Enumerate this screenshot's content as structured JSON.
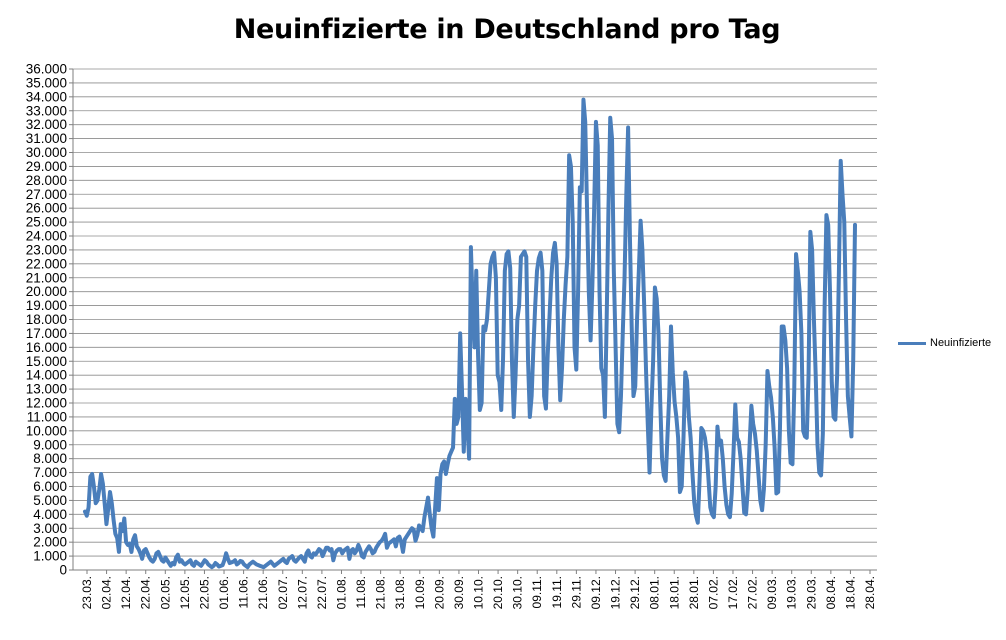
{
  "chart_data": {
    "type": "line",
    "title": "Neuinfizierte in Deutschland pro Tag",
    "xlabel": "",
    "ylabel": "",
    "ylim": [
      0,
      36000
    ],
    "y_ticks": [
      "0",
      "1.000",
      "2.000",
      "3.000",
      "4.000",
      "5.000",
      "6.000",
      "7.000",
      "8.000",
      "9.000",
      "10.000",
      "11.000",
      "12.000",
      "13.000",
      "14.000",
      "15.000",
      "16.000",
      "17.000",
      "18.000",
      "19.000",
      "20.000",
      "21.000",
      "22.000",
      "23.000",
      "24.000",
      "25.000",
      "26.000",
      "27.000",
      "28.000",
      "29.000",
      "30.000",
      "31.000",
      "32.000",
      "33.000",
      "34.000",
      "35.000",
      "36.000"
    ],
    "x_ticks": [
      "23.03.",
      "02.04.",
      "12.04.",
      "22.04.",
      "02.05.",
      "12.05.",
      "22.05.",
      "01.06.",
      "11.06.",
      "21.06.",
      "02.07.",
      "12.07.",
      "22.07.",
      "01.08.",
      "11.08.",
      "21.08.",
      "31.08.",
      "10.09.",
      "20.09.",
      "30.09.",
      "10.10.",
      "20.10.",
      "30.10.",
      "09.11.",
      "19.11.",
      "29.11.",
      "09.12.",
      "19.12.",
      "29.12.",
      "08.01.",
      "18.01.",
      "28.01.",
      "07.02.",
      "17.02.",
      "27.02.",
      "09.03.",
      "19.03.",
      "29.03.",
      "08.04.",
      "18.04.",
      "28.04."
    ],
    "grid": true,
    "legend_position": "right",
    "color": "#4a7ebb",
    "series": [
      {
        "name": "Neuinfizierte",
        "values": [
          4200,
          3900,
          4500,
          6700,
          6900,
          6000,
          4800,
          5000,
          5800,
          6900,
          6200,
          4800,
          3300,
          4400,
          5600,
          4800,
          3600,
          2600,
          2300,
          1300,
          3300,
          2800,
          3700,
          2000,
          1800,
          1900,
          1300,
          2200,
          2500,
          1700,
          1500,
          1200,
          800,
          1400,
          1500,
          1200,
          900,
          700,
          600,
          800,
          1200,
          1300,
          1000,
          700,
          600,
          900,
          700,
          500,
          300,
          500,
          400,
          900,
          1100,
          600,
          700,
          500,
          400,
          500,
          600,
          700,
          400,
          300,
          600,
          500,
          400,
          300,
          500,
          700,
          600,
          400,
          300,
          200,
          300,
          500,
          400,
          250,
          300,
          350,
          700,
          1200,
          800,
          500,
          550,
          600,
          700,
          400,
          500,
          650,
          600,
          400,
          300,
          200,
          400,
          500,
          600,
          500,
          400,
          350,
          300,
          250,
          200,
          300,
          400,
          500,
          600,
          450,
          300,
          400,
          500,
          600,
          700,
          800,
          600,
          500,
          800,
          900,
          1000,
          700,
          600,
          750,
          900,
          1000,
          800,
          600,
          1200,
          1400,
          1000,
          900,
          1200,
          1100,
          1300,
          1500,
          1400,
          1000,
          1300,
          1600,
          1600,
          1400,
          1500,
          700,
          1200,
          1400,
          1500,
          1500,
          1200,
          1400,
          1500,
          1600,
          800,
          1400,
          1500,
          1200,
          1400,
          1800,
          1500,
          1000,
          900,
          1300,
          1500,
          1700,
          1500,
          1200,
          1300,
          1600,
          1800,
          2000,
          2100,
          2300,
          2600,
          1600,
          1900,
          2000,
          2100,
          2200,
          1700,
          2300,
          2400,
          2000,
          1300,
          2200,
          2400,
          2600,
          2800,
          3000,
          2900,
          2100,
          2500,
          3200,
          3000,
          2800,
          3800,
          4500,
          5200,
          4000,
          3000,
          2400,
          4500,
          6600,
          4300,
          6900,
          7600,
          7800,
          6900,
          7600,
          8200,
          8500,
          8800,
          12300,
          10500,
          11000,
          17000,
          13000,
          8500,
          12300,
          10600,
          8000,
          23200,
          19000,
          16000,
          21500,
          15500,
          11500,
          12000,
          17500,
          17200,
          18000,
          20000,
          22000,
          22500,
          22800,
          21000,
          14000,
          13500,
          11500,
          15200,
          21500,
          22700,
          22900,
          21700,
          15000,
          11000,
          14000,
          18000,
          19000,
          22500,
          22700,
          22900,
          22500,
          15000,
          11000,
          12500,
          16000,
          19000,
          21500,
          22400,
          22800,
          21500,
          12500,
          11600,
          15500,
          18200,
          21000,
          22800,
          23500,
          22000,
          16000,
          12200,
          14500,
          18000,
          20500,
          22500,
          29800,
          29000,
          25000,
          16000,
          14400,
          20000,
          27500,
          27200,
          33800,
          32200,
          26000,
          20000,
          16500,
          20500,
          26000,
          32200,
          30500,
          20000,
          14500,
          14000,
          11000,
          18000,
          26000,
          32500,
          31000,
          21500,
          16000,
          10500,
          9900,
          12500,
          17000,
          21000,
          27000,
          31800,
          24000,
          17500,
          12500,
          13200,
          18000,
          21500,
          25100,
          23000,
          19000,
          14500,
          10500,
          7000,
          11500,
          15000,
          20300,
          19500,
          17000,
          12000,
          8000,
          6800,
          6400,
          9500,
          12500,
          17500,
          14200,
          12100,
          11000,
          9500,
          5600,
          6000,
          9500,
          14200,
          13600,
          11000,
          9500,
          7000,
          4900,
          3900,
          3400,
          6500,
          10200,
          10000,
          9500,
          8500,
          6500,
          4500,
          4000,
          3800,
          6000,
          10300,
          9000,
          9300,
          8000,
          6000,
          4700,
          4000,
          3800,
          5500,
          8500,
          11900,
          9500,
          9200,
          8000,
          6000,
          4100,
          4000,
          5800,
          9000,
          11800,
          10500,
          9800,
          8600,
          6800,
          5000,
          4300,
          5800,
          9000,
          14300,
          13200,
          12400,
          11000,
          8800,
          5500,
          5600,
          10200,
          17500,
          17500,
          16500,
          14500,
          10000,
          7700,
          7600,
          13000,
          22700,
          21500,
          20000,
          17000,
          10000,
          9600,
          9500,
          14000,
          24300,
          23000,
          18000,
          14000,
          9000,
          7000,
          6800,
          9800,
          19000,
          25500,
          24800,
          20000,
          13500,
          11000,
          10800,
          14000,
          21500,
          29400,
          27000,
          25000,
          18000,
          12500,
          11000,
          9600,
          15000,
          24800
        ]
      }
    ]
  }
}
